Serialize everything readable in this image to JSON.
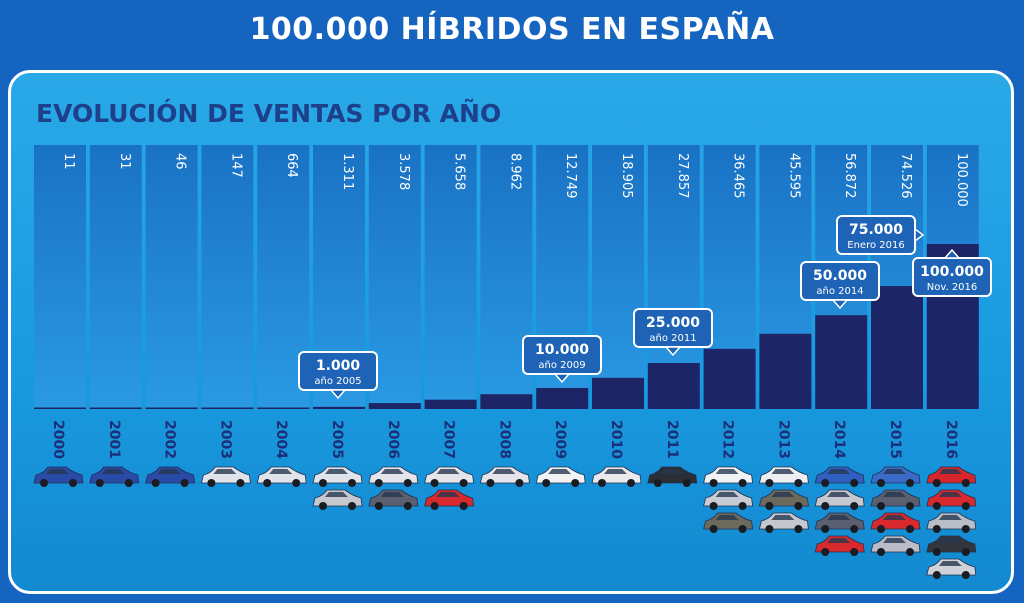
{
  "title": "100.000 HÍBRIDOS EN ESPAÑA",
  "subtitle": "EVOLUCIÓN DE VENTAS POR AÑO",
  "colors": {
    "background": "#1565c0",
    "panel": "#1a9be0",
    "column": "#1e7fd0",
    "bar": "#1d2566",
    "badge": "#1e63b5",
    "title_text": "#1e3f8a"
  },
  "chart_data": {
    "type": "bar",
    "categories": [
      "2000",
      "2001",
      "2002",
      "2003",
      "2004",
      "2005",
      "2006",
      "2007",
      "2008",
      "2009",
      "2010",
      "2011",
      "2012",
      "2013",
      "2014",
      "2015",
      "2016"
    ],
    "value_labels": [
      "11",
      "31",
      "46",
      "147",
      "664",
      "1.311",
      "3.578",
      "5.658",
      "8.962",
      "12.749",
      "18.905",
      "27.857",
      "36.465",
      "45.595",
      "56.872",
      "74.526",
      "100.000"
    ],
    "values": [
      11,
      31,
      46,
      147,
      664,
      1311,
      3578,
      5658,
      8962,
      12749,
      18905,
      27857,
      36465,
      45595,
      56872,
      74526,
      100000
    ],
    "ylim": [
      0,
      160000
    ],
    "milestones": [
      {
        "year": "2005",
        "value": "1.000",
        "label": "año 2005"
      },
      {
        "year": "2009",
        "value": "10.000",
        "label": "año 2009"
      },
      {
        "year": "2011",
        "value": "25.000",
        "label": "año 2011"
      },
      {
        "year": "2014",
        "value": "50.000",
        "label": "año 2014"
      },
      {
        "year": "2016",
        "value": "75.000",
        "label": "Enero 2016"
      },
      {
        "year": "2016",
        "value": "100.000",
        "label": "Nov. 2016"
      }
    ],
    "car_counts": [
      1,
      1,
      1,
      1,
      1,
      2,
      2,
      2,
      1,
      1,
      1,
      1,
      3,
      3,
      4,
      4,
      5
    ]
  }
}
